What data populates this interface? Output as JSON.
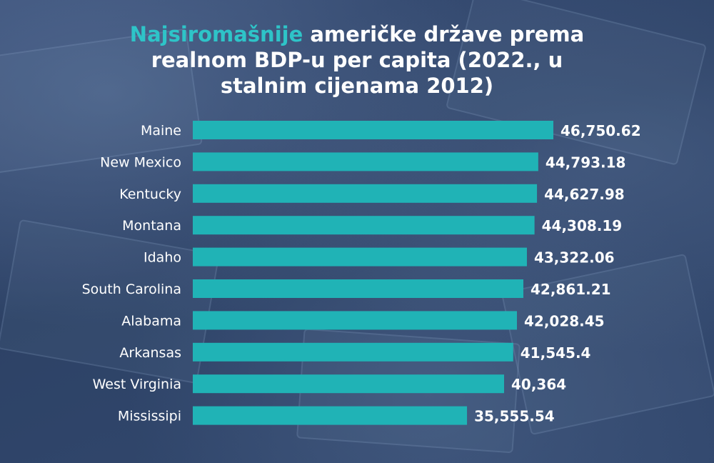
{
  "title": {
    "highlight": "Najsiromašnije",
    "line1_rest": " američke države  prema",
    "line2": "realnom BDP-u per capita (2022., u",
    "line3": "stalnim cijenama 2012)"
  },
  "colors": {
    "bar": "#20b3b6",
    "highlight": "#2ec4c8",
    "text": "#ffffff",
    "background": "#2f4468"
  },
  "chart_data": {
    "type": "bar",
    "orientation": "horizontal",
    "title": "Najsiromašnije američke države  prema realnom BDP-u per capita (2022., u stalnim cijenama 2012)",
    "categories": [
      "Maine",
      "New Mexico",
      "Kentucky",
      "Montana",
      "Idaho",
      "South Carolina",
      "Alabama",
      "Arkansas",
      "West Virginia",
      "Mississipi"
    ],
    "values": [
      46750.62,
      44793.18,
      44627.98,
      44308.19,
      43322.06,
      42861.21,
      42028.45,
      41545.4,
      40364,
      35555.54
    ],
    "value_labels": [
      "46,750.62",
      "44,793.18",
      "44,627.98",
      "44,308.19",
      "43,322.06",
      "42,861.21",
      "42,028.45",
      "41,545.4",
      "40,364",
      "35,555.54"
    ],
    "xlim": [
      0,
      46750.62
    ],
    "grid": false,
    "legend": "none"
  }
}
